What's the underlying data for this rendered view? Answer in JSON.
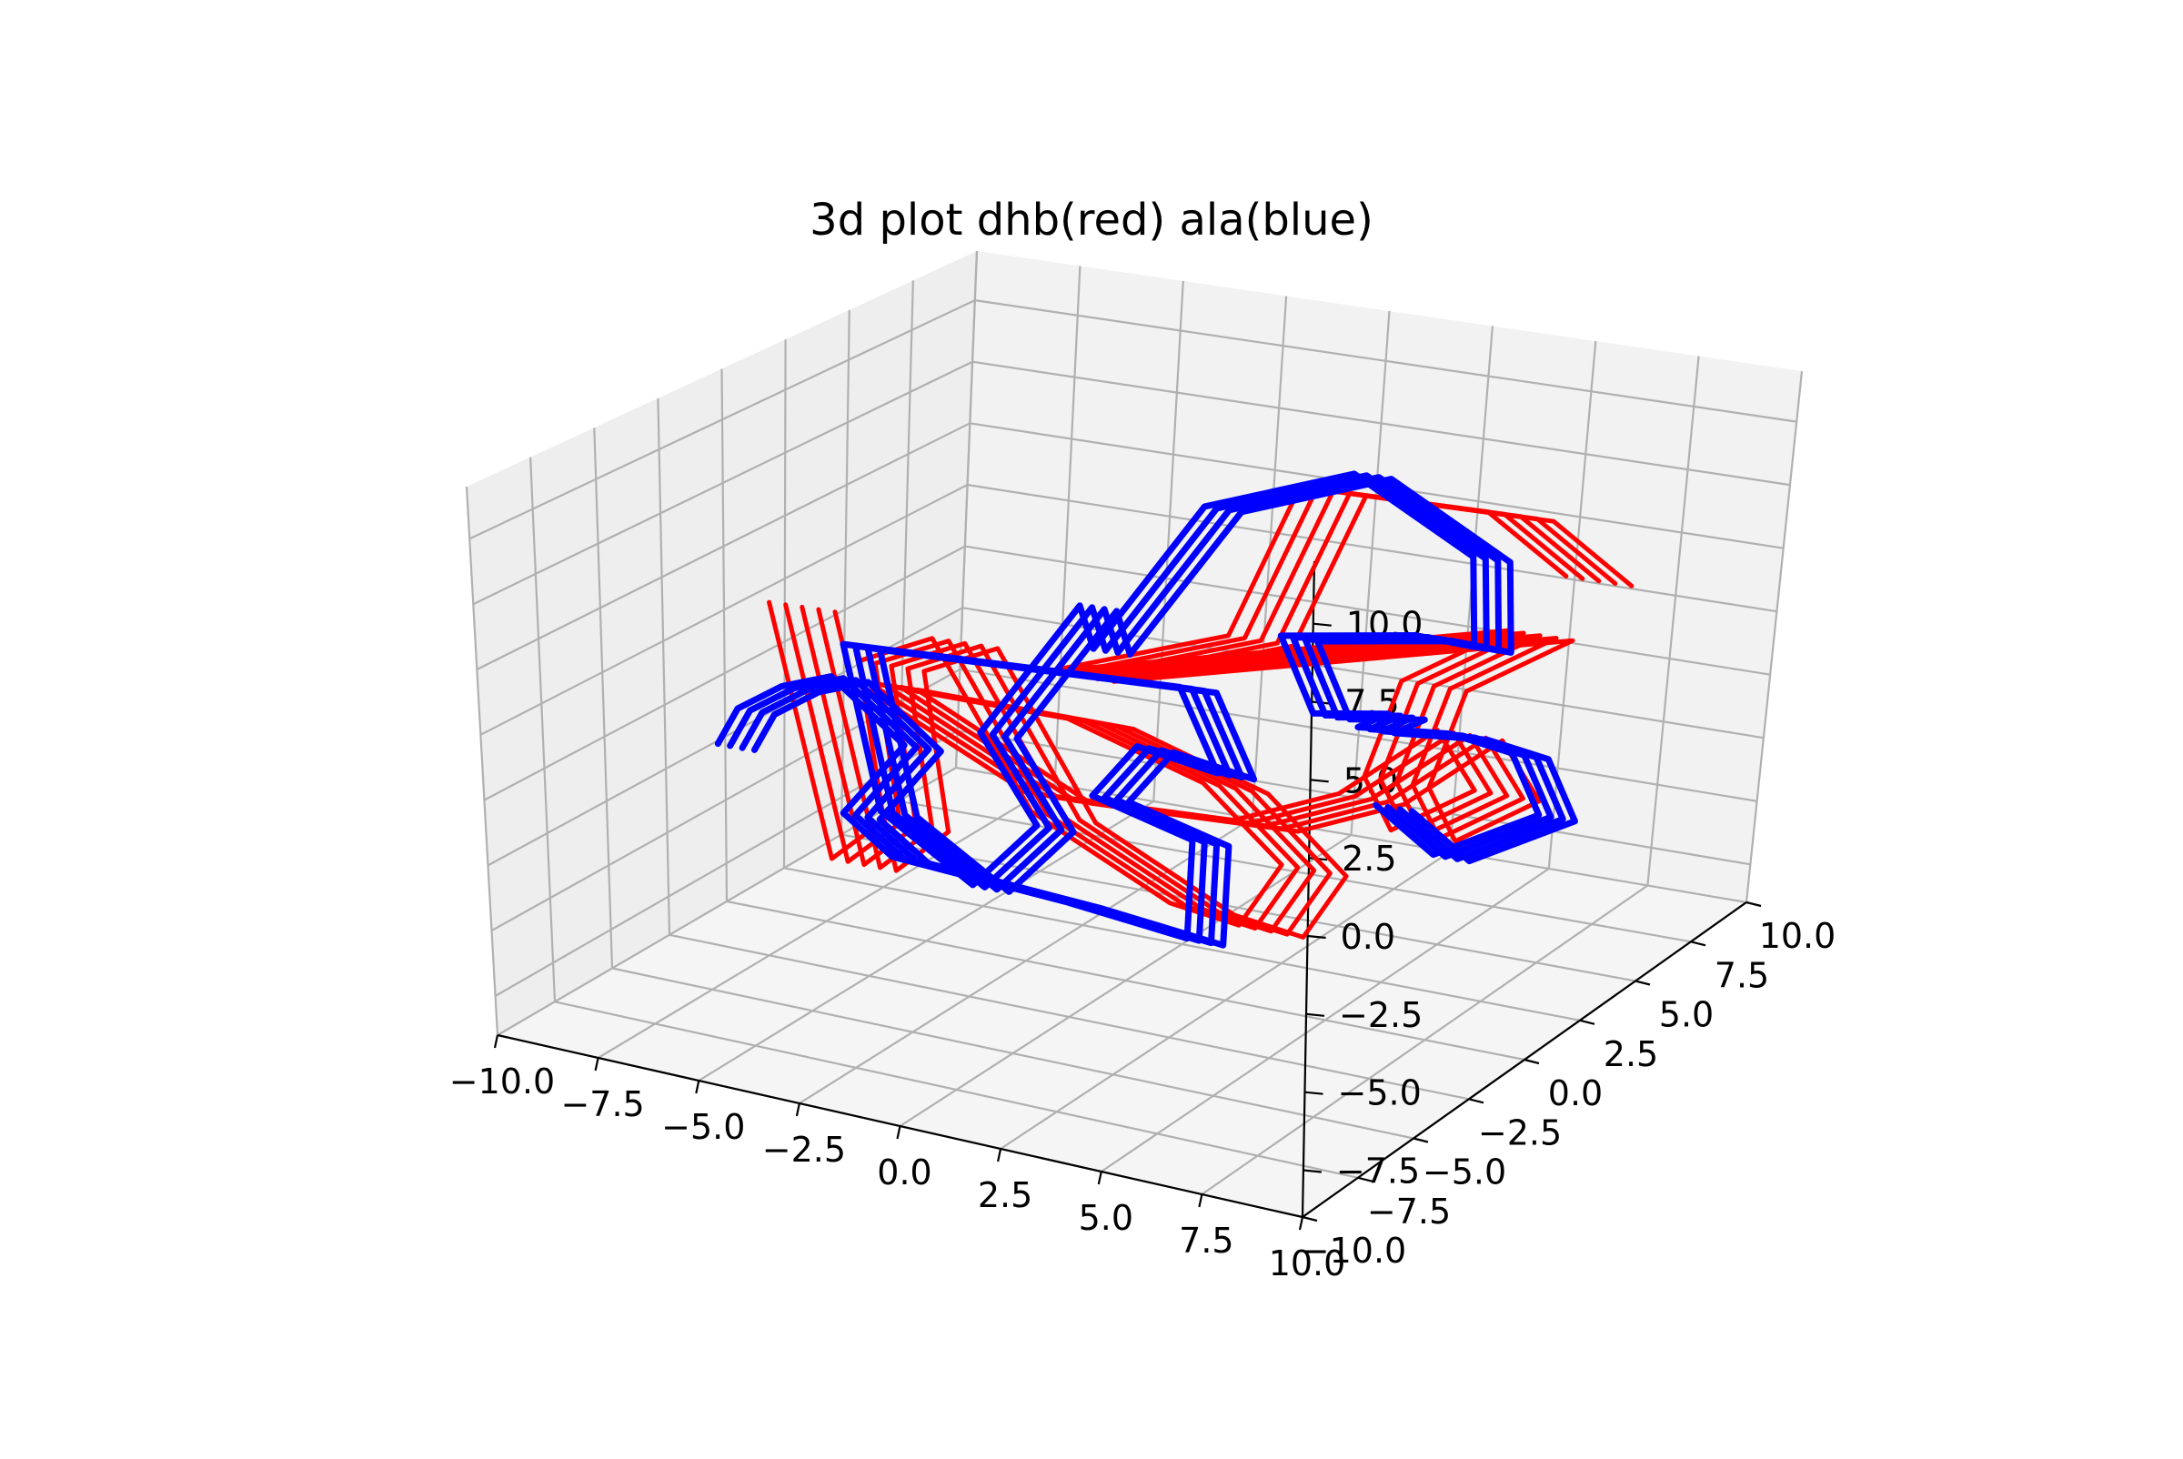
{
  "chart_data": {
    "type": "line3d",
    "title": "3d plot dhb(red) ala(blue)",
    "xlabel": "",
    "ylabel": "",
    "zlabel": "",
    "xlim": [
      -10,
      10
    ],
    "ylim": [
      -10,
      10
    ],
    "zlim": [
      -9,
      12
    ],
    "grid": true,
    "x_ticks": [
      "−10.0",
      "−7.5",
      "−5.0",
      "−2.5",
      "0.0",
      "2.5",
      "5.0",
      "7.5",
      "10.0"
    ],
    "y_ticks": [
      "−10.0",
      "−7.5",
      "−5.0",
      "−2.5",
      "0.0",
      "2.5",
      "5.0",
      "7.5",
      "10.0"
    ],
    "z_ticks": [
      "−7.5",
      "−5.0",
      "−2.5",
      "0.0",
      "2.5",
      "5.0",
      "7.5",
      "10.0"
    ],
    "series": [
      {
        "color": "#ff0000",
        "copies": 5,
        "copy_offset": [
          0.4,
          0.0,
          0.0
        ],
        "points": [
          [
            -8.0,
            -1.5,
            4.0
          ],
          [
            -6.5,
            -1.5,
            -5.5
          ],
          [
            -5.5,
            -1.0,
            -4.0
          ],
          [
            -7.0,
            0.5,
            1.0
          ],
          [
            -5.5,
            1.0,
            2.0
          ],
          [
            -3.0,
            1.0,
            -4.0
          ],
          [
            0.5,
            1.0,
            -6.5
          ],
          [
            2.5,
            0.5,
            -6.5
          ],
          [
            3.5,
            0.5,
            -4.0
          ],
          [
            1.5,
            0.5,
            -1.5
          ],
          [
            -1.0,
            -1.0,
            1.0
          ],
          [
            -6.0,
            -1.5,
            1.5
          ],
          [
            -2.0,
            -1.0,
            -2.0
          ],
          [
            2.0,
            1.0,
            -3.0
          ],
          [
            4.0,
            2.0,
            -2.0
          ],
          [
            5.5,
            3.5,
            0.0
          ],
          [
            6.5,
            3.5,
            -2.0
          ],
          [
            4.5,
            3.5,
            -4.0
          ],
          [
            3.5,
            4.0,
            -2.5
          ],
          [
            4.0,
            4.5,
            1.0
          ],
          [
            6.5,
            4.5,
            3.5
          ],
          [
            -3.5,
            2.5,
            0.5
          ],
          [
            0.0,
            4.0,
            2.0
          ],
          [
            1.0,
            5.0,
            7.5
          ],
          [
            5.0,
            6.0,
            7.0
          ],
          [
            7.0,
            6.0,
            5.0
          ]
        ]
      },
      {
        "color": "#0000ff",
        "copies": 4,
        "copy_offset": [
          0.3,
          0.0,
          0.0
        ],
        "points": [
          [
            -9.0,
            -2.0,
            -1.5
          ],
          [
            -8.5,
            -2.0,
            0.0
          ],
          [
            -8.0,
            -1.0,
            0.5
          ],
          [
            -6.5,
            -1.5,
            1.5
          ],
          [
            -5.0,
            -1.0,
            -1.0
          ],
          [
            -6.5,
            -1.0,
            -4.0
          ],
          [
            -5.0,
            -1.5,
            -5.0
          ],
          [
            -1.5,
            0.0,
            -6.5
          ],
          [
            1.5,
            0.0,
            -7.0
          ],
          [
            1.0,
            1.0,
            -4.0
          ],
          [
            -1.5,
            1.0,
            -3.0
          ],
          [
            -1.0,
            2.0,
            -1.5
          ],
          [
            1.0,
            2.0,
            -2.0
          ],
          [
            0.0,
            2.0,
            1.0
          ],
          [
            -6.5,
            -1.0,
            2.5
          ],
          [
            -5.0,
            -2.0,
            -3.0
          ],
          [
            -3.0,
            -1.5,
            -5.5
          ],
          [
            -2.0,
            -0.5,
            -3.5
          ],
          [
            -4.0,
            0.5,
            -1.0
          ],
          [
            -2.5,
            2.0,
            3.5
          ],
          [
            -3.0,
            3.5,
            1.0
          ],
          [
            -1.0,
            4.5,
            6.5
          ],
          [
            2.0,
            5.5,
            8.0
          ],
          [
            5.0,
            5.5,
            5.5
          ],
          [
            6.0,
            4.0,
            3.0
          ],
          [
            4.0,
            5.0,
            2.5
          ],
          [
            1.0,
            4.5,
            2.0
          ],
          [
            3.0,
            2.5,
            0.5
          ],
          [
            4.0,
            4.0,
            0.0
          ],
          [
            3.0,
            4.5,
            -1.0
          ],
          [
            5.0,
            5.0,
            -1.0
          ],
          [
            6.0,
            6.0,
            -2.0
          ],
          [
            6.5,
            6.5,
            -4.5
          ],
          [
            4.5,
            5.5,
            -6.0
          ],
          [
            3.0,
            5.5,
            -4.5
          ]
        ]
      }
    ]
  }
}
